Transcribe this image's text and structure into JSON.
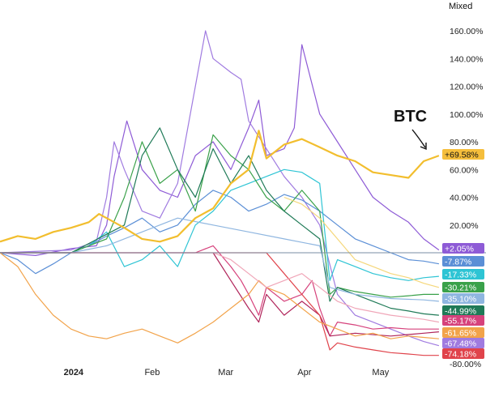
{
  "controls": {
    "scale_mode": "Mixed"
  },
  "annotation": {
    "text": "BTC"
  },
  "chart_data": {
    "type": "line",
    "title": "",
    "xlabel": "",
    "ylabel": "",
    "y_unit": "%",
    "ylim": [
      -85,
      170
    ],
    "xlim": [
      "2023-12-03",
      "2024-05-25"
    ],
    "baseline": 0,
    "grid": false,
    "legend": "none",
    "x_ticks": [
      {
        "label": "2024",
        "date": "2024-01-01",
        "bold": true
      },
      {
        "label": "Feb",
        "date": "2024-02-01",
        "bold": false
      },
      {
        "label": "Mar",
        "date": "2024-03-01",
        "bold": false
      },
      {
        "label": "Apr",
        "date": "2024-04-01",
        "bold": false
      },
      {
        "label": "May",
        "date": "2024-05-01",
        "bold": false
      }
    ],
    "y_ticks": [
      {
        "label": "160.00%",
        "value": 160
      },
      {
        "label": "140.00%",
        "value": 140
      },
      {
        "label": "120.00%",
        "value": 120
      },
      {
        "label": "100.00%",
        "value": 100
      },
      {
        "label": "80.00%",
        "value": 80
      },
      {
        "label": "60.00%",
        "value": 60
      },
      {
        "label": "40.00%",
        "value": 40
      },
      {
        "label": "20.00%",
        "value": 20
      },
      {
        "label": "-80.00%",
        "value": -80
      }
    ],
    "end_labels": [
      {
        "text": "+69.58%",
        "value": 69.58,
        "color": "#f5be3c"
      },
      {
        "text": "+2.05%",
        "value": 2.05,
        "color": "#8e5bd6"
      },
      {
        "text": "-7.87%",
        "value": -7.87,
        "color": "#5b8fd6"
      },
      {
        "text": "-17.33%",
        "value": -17.33,
        "color": "#2ec4d4"
      },
      {
        "text": "-30.21%",
        "value": -30.21,
        "color": "#3aa14a"
      },
      {
        "text": "-35.10%",
        "value": -35.1,
        "color": "#8fb6e0"
      },
      {
        "text": "-44.99%",
        "value": -44.99,
        "color": "#1f7a57"
      },
      {
        "text": "-55.17%",
        "value": -55.17,
        "color": "#d6427c"
      },
      {
        "text": "-61.65%",
        "value": -61.65,
        "color": "#f2a34a"
      },
      {
        "text": "-67.48%",
        "value": -67.48,
        "color": "#a07be0"
      },
      {
        "text": "-74.18%",
        "value": -74.18,
        "color": "#e0434b"
      }
    ],
    "series": [
      {
        "color": "#f2be2e",
        "width": 2.2,
        "x": [
          "2023-12-03",
          "2023-12-10",
          "2023-12-17",
          "2023-12-24",
          "2023-12-31",
          "2024-01-07",
          "2024-01-11",
          "2024-01-14",
          "2024-01-21",
          "2024-01-28",
          "2024-02-04",
          "2024-02-11",
          "2024-02-18",
          "2024-02-25",
          "2024-03-03",
          "2024-03-10",
          "2024-03-14",
          "2024-03-17",
          "2024-03-24",
          "2024-03-31",
          "2024-04-07",
          "2024-04-14",
          "2024-04-21",
          "2024-04-28",
          "2024-05-05",
          "2024-05-12",
          "2024-05-18",
          "2024-05-24"
        ],
        "values": [
          8,
          12,
          10,
          15,
          18,
          22,
          28,
          25,
          18,
          10,
          8,
          12,
          25,
          32,
          50,
          60,
          88,
          68,
          78,
          82,
          76,
          70,
          66,
          58,
          56,
          54,
          66,
          70
        ]
      },
      {
        "color": "#8e5bd6",
        "width": 1.2,
        "x": [
          "2023-12-03",
          "2023-12-17",
          "2023-12-31",
          "2024-01-10",
          "2024-01-14",
          "2024-01-17",
          "2024-01-22",
          "2024-01-28",
          "2024-02-04",
          "2024-02-11",
          "2024-02-18",
          "2024-02-25",
          "2024-03-03",
          "2024-03-10",
          "2024-03-14",
          "2024-03-17",
          "2024-03-24",
          "2024-03-28",
          "2024-03-31",
          "2024-04-07",
          "2024-04-14",
          "2024-04-21",
          "2024-04-28",
          "2024-05-05",
          "2024-05-12",
          "2024-05-18",
          "2024-05-24"
        ],
        "values": [
          0,
          -2,
          3,
          5,
          20,
          55,
          95,
          60,
          45,
          40,
          70,
          80,
          60,
          90,
          110,
          70,
          75,
          90,
          150,
          100,
          80,
          60,
          40,
          30,
          22,
          10,
          2
        ]
      },
      {
        "color": "#a07be0",
        "width": 1.2,
        "x": [
          "2023-12-03",
          "2023-12-31",
          "2024-01-10",
          "2024-01-14",
          "2024-01-17",
          "2024-01-21",
          "2024-01-28",
          "2024-02-04",
          "2024-02-11",
          "2024-02-18",
          "2024-02-22",
          "2024-02-25",
          "2024-03-03",
          "2024-03-07",
          "2024-03-10",
          "2024-03-17",
          "2024-03-24",
          "2024-03-31",
          "2024-04-07",
          "2024-04-14",
          "2024-04-21",
          "2024-04-28",
          "2024-05-05",
          "2024-05-12",
          "2024-05-18",
          "2024-05-24"
        ],
        "values": [
          0,
          2,
          8,
          40,
          80,
          60,
          30,
          25,
          50,
          120,
          160,
          140,
          130,
          125,
          95,
          75,
          55,
          40,
          20,
          -30,
          -45,
          -50,
          -55,
          -60,
          -64,
          -67
        ]
      },
      {
        "color": "#5b8fd6",
        "width": 1.2,
        "x": [
          "2023-12-03",
          "2023-12-10",
          "2023-12-17",
          "2023-12-24",
          "2023-12-31",
          "2024-01-07",
          "2024-01-14",
          "2024-01-21",
          "2024-01-28",
          "2024-02-04",
          "2024-02-11",
          "2024-02-18",
          "2024-02-25",
          "2024-03-03",
          "2024-03-10",
          "2024-03-17",
          "2024-03-24",
          "2024-03-31",
          "2024-04-07",
          "2024-04-14",
          "2024-04-21",
          "2024-04-28",
          "2024-05-05",
          "2024-05-12",
          "2024-05-18",
          "2024-05-24"
        ],
        "values": [
          0,
          -5,
          -15,
          -8,
          0,
          5,
          12,
          18,
          25,
          15,
          20,
          35,
          45,
          40,
          30,
          35,
          42,
          38,
          30,
          20,
          10,
          5,
          0,
          -5,
          -6,
          -8
        ]
      },
      {
        "color": "#2ec4d4",
        "width": 1.2,
        "x": [
          "2023-12-03",
          "2023-12-31",
          "2024-01-07",
          "2024-01-14",
          "2024-01-21",
          "2024-01-28",
          "2024-02-04",
          "2024-02-11",
          "2024-02-18",
          "2024-02-25",
          "2024-03-03",
          "2024-03-10",
          "2024-03-17",
          "2024-03-24",
          "2024-03-31",
          "2024-04-07",
          "2024-04-11",
          "2024-04-14",
          "2024-04-21",
          "2024-04-28",
          "2024-05-05",
          "2024-05-12",
          "2024-05-18",
          "2024-05-24"
        ],
        "values": [
          0,
          0,
          5,
          15,
          -10,
          -5,
          5,
          -10,
          20,
          30,
          45,
          50,
          55,
          60,
          58,
          50,
          -20,
          -5,
          -10,
          -15,
          -18,
          -20,
          -18,
          -17
        ]
      },
      {
        "color": "#3aa14a",
        "width": 1.2,
        "x": [
          "2023-12-03",
          "2023-12-31",
          "2024-01-14",
          "2024-01-21",
          "2024-01-28",
          "2024-02-04",
          "2024-02-11",
          "2024-02-18",
          "2024-02-25",
          "2024-03-03",
          "2024-03-10",
          "2024-03-17",
          "2024-03-24",
          "2024-03-31",
          "2024-04-07",
          "2024-04-11",
          "2024-04-14",
          "2024-04-21",
          "2024-04-28",
          "2024-05-05",
          "2024-05-12",
          "2024-05-18",
          "2024-05-24"
        ],
        "values": [
          0,
          0,
          10,
          40,
          80,
          50,
          60,
          30,
          85,
          70,
          60,
          40,
          30,
          45,
          30,
          -30,
          -25,
          -28,
          -30,
          -32,
          -31,
          -30,
          -30
        ]
      },
      {
        "color": "#1f7a57",
        "width": 1.2,
        "x": [
          "2023-12-03",
          "2023-12-31",
          "2024-01-21",
          "2024-01-28",
          "2024-02-04",
          "2024-02-11",
          "2024-02-18",
          "2024-02-25",
          "2024-03-03",
          "2024-03-10",
          "2024-03-17",
          "2024-03-24",
          "2024-03-31",
          "2024-04-07",
          "2024-04-11",
          "2024-04-14",
          "2024-04-21",
          "2024-04-28",
          "2024-05-05",
          "2024-05-12",
          "2024-05-18",
          "2024-05-24"
        ],
        "values": [
          0,
          0,
          20,
          70,
          90,
          60,
          40,
          75,
          50,
          70,
          45,
          30,
          20,
          10,
          -35,
          -25,
          -30,
          -35,
          -40,
          -42,
          -44,
          -45
        ]
      },
      {
        "color": "#8fb6e0",
        "width": 1.2,
        "x": [
          "2023-12-03",
          "2023-12-31",
          "2024-01-14",
          "2024-01-28",
          "2024-02-11",
          "2024-02-25",
          "2024-03-10",
          "2024-03-24",
          "2024-04-07",
          "2024-04-11",
          "2024-04-21",
          "2024-05-05",
          "2024-05-18",
          "2024-05-24"
        ],
        "values": [
          0,
          0,
          5,
          15,
          25,
          20,
          15,
          10,
          5,
          -25,
          -30,
          -33,
          -34,
          -35
        ]
      },
      {
        "color": "#d6427c",
        "width": 1.2,
        "x": [
          "2023-12-03",
          "2024-02-18",
          "2024-02-25",
          "2024-03-03",
          "2024-03-07",
          "2024-03-10",
          "2024-03-14",
          "2024-03-17",
          "2024-03-24",
          "2024-03-31",
          "2024-04-04",
          "2024-04-07",
          "2024-04-11",
          "2024-04-14",
          "2024-04-21",
          "2024-04-28",
          "2024-05-05",
          "2024-05-12",
          "2024-05-18",
          "2024-05-24"
        ],
        "values": [
          0,
          0,
          5,
          -10,
          -20,
          -30,
          -45,
          -25,
          -35,
          -30,
          -20,
          -40,
          -60,
          -50,
          -52,
          -55,
          -54,
          -55,
          -55,
          -55
        ]
      },
      {
        "color": "#b0245a",
        "width": 1.2,
        "x": [
          "2024-02-25",
          "2024-03-03",
          "2024-03-10",
          "2024-03-14",
          "2024-03-17",
          "2024-03-24",
          "2024-03-31",
          "2024-04-07",
          "2024-04-11",
          "2024-04-21",
          "2024-05-05",
          "2024-05-18",
          "2024-05-24"
        ],
        "values": [
          0,
          -20,
          -40,
          -50,
          -30,
          -45,
          -35,
          -45,
          -60,
          -58,
          -60,
          -58,
          -57
        ]
      },
      {
        "color": "#e0434b",
        "width": 1.2,
        "x": [
          "2023-12-03",
          "2024-03-17",
          "2024-03-24",
          "2024-03-31",
          "2024-04-07",
          "2024-04-11",
          "2024-04-14",
          "2024-04-21",
          "2024-04-28",
          "2024-05-05",
          "2024-05-12",
          "2024-05-18",
          "2024-05-24"
        ],
        "values": [
          0,
          0,
          -15,
          -30,
          -45,
          -70,
          -65,
          -68,
          -70,
          -72,
          -73,
          -74,
          -74
        ]
      },
      {
        "color": "#f2a34a",
        "width": 1.2,
        "x": [
          "2023-12-03",
          "2023-12-10",
          "2023-12-17",
          "2023-12-24",
          "2023-12-31",
          "2024-01-07",
          "2024-01-14",
          "2024-01-21",
          "2024-01-28",
          "2024-02-04",
          "2024-02-11",
          "2024-02-18",
          "2024-02-25",
          "2024-03-03",
          "2024-03-10",
          "2024-03-14",
          "2024-03-17",
          "2024-03-24",
          "2024-03-31",
          "2024-04-07",
          "2024-04-14",
          "2024-04-21",
          "2024-04-28",
          "2024-05-05",
          "2024-05-12",
          "2024-05-18",
          "2024-05-24"
        ],
        "values": [
          0,
          -10,
          -30,
          -45,
          -55,
          -60,
          -62,
          -58,
          -55,
          -60,
          -65,
          -58,
          -50,
          -40,
          -30,
          -20,
          -25,
          -30,
          -40,
          -50,
          -55,
          -60,
          -58,
          -62,
          -60,
          -61,
          -62
        ]
      },
      {
        "color": "#f0a6b8",
        "width": 1.2,
        "x": [
          "2024-02-25",
          "2024-03-03",
          "2024-03-10",
          "2024-03-17",
          "2024-03-24",
          "2024-03-31",
          "2024-04-07",
          "2024-04-14",
          "2024-04-21",
          "2024-05-05",
          "2024-05-18",
          "2024-05-24"
        ],
        "values": [
          0,
          -5,
          -15,
          -25,
          -20,
          -15,
          -25,
          -35,
          -40,
          -45,
          -48,
          -50
        ]
      },
      {
        "color": "#f5d77a",
        "width": 1.2,
        "x": [
          "2024-03-24",
          "2024-03-31",
          "2024-04-07",
          "2024-04-14",
          "2024-04-21",
          "2024-04-28",
          "2024-05-05",
          "2024-05-12",
          "2024-05-18",
          "2024-05-24"
        ],
        "values": [
          40,
          35,
          25,
          10,
          -5,
          -10,
          -15,
          -18,
          -22,
          -25
        ]
      }
    ]
  }
}
